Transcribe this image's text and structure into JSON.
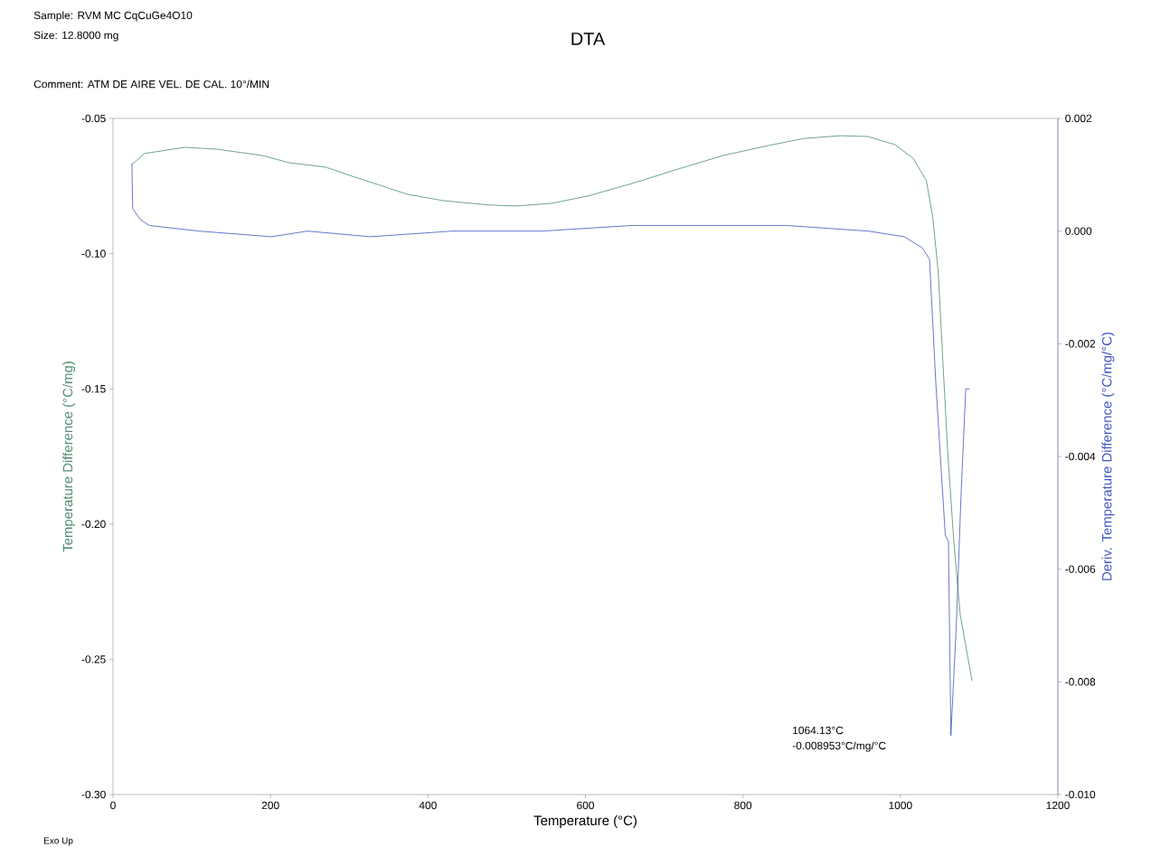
{
  "chart_data": {
    "type": "line",
    "title": "DTA",
    "xlabel": "Temperature (°C)",
    "ylabel": "Temperature Difference (°C/mg)",
    "y2label": "Deriv. Temperature Difference (°C/mg/°C)",
    "annotations": [
      "Sample: RVM MC CqCuGe4O10",
      "Size:   12.8000 mg",
      "Comment: ATM DE AIRE  VEL. DE CAL. 10°/MIN",
      "Exo Up",
      "1064.13°C",
      "-0.008953°C/mg/°C"
    ],
    "xlim": [
      0,
      1200
    ],
    "xticks": [
      0,
      200,
      400,
      600,
      800,
      1000,
      1200
    ],
    "ylim": [
      -0.3,
      -0.05
    ],
    "yticks": [
      {
        "value": -0.3,
        "label": "-0.30"
      },
      {
        "value": -0.25,
        "label": "-0.25"
      },
      {
        "value": -0.2,
        "label": "-0.20"
      },
      {
        "value": -0.15,
        "label": "-0.15"
      },
      {
        "value": -0.1,
        "label": "-0.10"
      },
      {
        "value": -0.05,
        "label": "-0.05"
      }
    ],
    "y2lim": [
      -0.01,
      0.002
    ],
    "y2ticks": [
      {
        "value": -0.01,
        "label": "-0.010"
      },
      {
        "value": -0.008,
        "label": "-0.008"
      },
      {
        "value": -0.006,
        "label": "-0.006"
      },
      {
        "value": -0.004,
        "label": "-0.004"
      },
      {
        "value": -0.002,
        "label": "-0.002"
      },
      {
        "value": 0.0,
        "label": "0.000"
      },
      {
        "value": 0.002,
        "label": "0.002"
      }
    ],
    "series": [
      {
        "color": "#4e8c6c",
        "x": [
          24,
          40,
          75,
          92,
          132,
          189,
          224,
          270,
          304,
          339,
          373,
          419,
          477,
          511,
          557,
          603,
          660,
          718,
          775,
          833,
          878,
          924,
          959,
          993,
          1016,
          1033,
          1041,
          1048,
          1054,
          1060,
          1068,
          1076,
          1091
        ],
        "values": [
          -0.067,
          -0.063,
          -0.0614,
          -0.0607,
          -0.0614,
          -0.0637,
          -0.0664,
          -0.068,
          -0.0714,
          -0.0747,
          -0.078,
          -0.0804,
          -0.082,
          -0.0824,
          -0.0814,
          -0.0787,
          -0.074,
          -0.0687,
          -0.0637,
          -0.06,
          -0.0574,
          -0.0564,
          -0.0567,
          -0.0597,
          -0.0647,
          -0.073,
          -0.0864,
          -0.1065,
          -0.14,
          -0.173,
          -0.207,
          -0.2335,
          -0.258
        ]
      },
      {
        "color": "#3f55c0",
        "axis": "y2",
        "x": [
          24,
          25,
          35,
          46,
          109,
          201,
          247,
          327,
          431,
          545,
          660,
          775,
          855,
          959,
          1005,
          1028,
          1037,
          1045,
          1057,
          1061,
          1064.13,
          1071,
          1077,
          1083,
          1088
        ],
        "values": [
          0.0012,
          0.0004,
          0.0002,
          0.0001,
          0,
          -0.0001,
          0,
          -0.0001,
          0,
          0,
          0.0001,
          0.0001,
          0.0001,
          0,
          -0.0001,
          -0.0003,
          -0.0005,
          -0.0027,
          -0.0054,
          -0.0055,
          -0.008953,
          -0.007,
          -0.0047,
          -0.0028,
          -0.0028
        ]
      }
    ],
    "grid": false,
    "marker": "none",
    "line_style": "solid"
  }
}
